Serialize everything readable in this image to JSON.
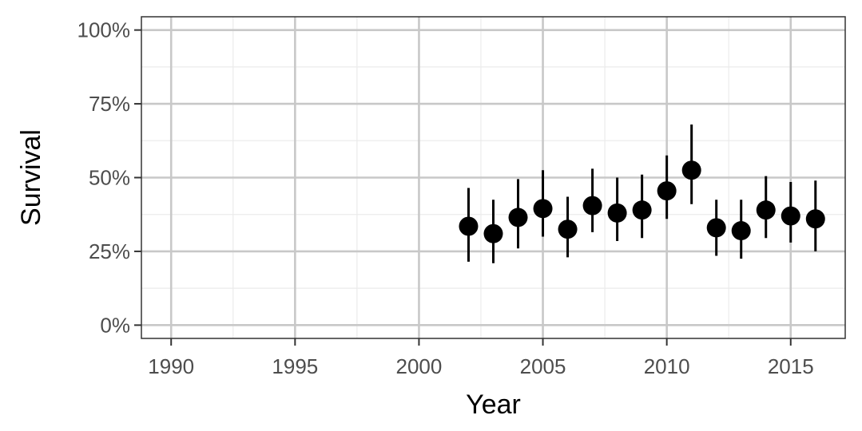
{
  "chart_data": {
    "type": "scatter",
    "title": "",
    "xlabel": "Year",
    "ylabel": "Survival",
    "xlim": [
      1988.8,
      2017.2
    ],
    "ylim": [
      -4.5,
      104.5
    ],
    "x_ticks": [
      1990,
      1995,
      2000,
      2005,
      2010,
      2015
    ],
    "x_tick_labels": [
      "1990",
      "1995",
      "2000",
      "2005",
      "2010",
      "2015"
    ],
    "y_ticks": [
      0,
      25,
      50,
      75,
      100
    ],
    "y_tick_labels": [
      "0%",
      "25%",
      "50%",
      "75%",
      "100%"
    ],
    "grid": true,
    "legend": "none",
    "series": [
      {
        "x": [
          2002,
          2003,
          2004,
          2005,
          2006,
          2007,
          2008,
          2009,
          2010,
          2011,
          2012,
          2013,
          2014,
          2015,
          2016
        ],
        "y": [
          33.5,
          31,
          36.5,
          39.5,
          32.5,
          40.5,
          38,
          39,
          45.5,
          52.5,
          33,
          32,
          39,
          37,
          36
        ],
        "lower": [
          21.5,
          21,
          26,
          30,
          23,
          31.5,
          28.5,
          29.5,
          36,
          41,
          23.5,
          22.5,
          29.5,
          28,
          25
        ],
        "upper": [
          46.5,
          42.5,
          49.5,
          52.5,
          43.5,
          53,
          50,
          51,
          57.5,
          68,
          42.5,
          42.5,
          50.5,
          48.5,
          49
        ]
      }
    ]
  },
  "colors": {
    "point": "#000000",
    "grid_major": "#c8c8c8",
    "grid_minor": "#ebebeb",
    "panel_border": "#333333",
    "tick_text": "#4d4d4d"
  }
}
